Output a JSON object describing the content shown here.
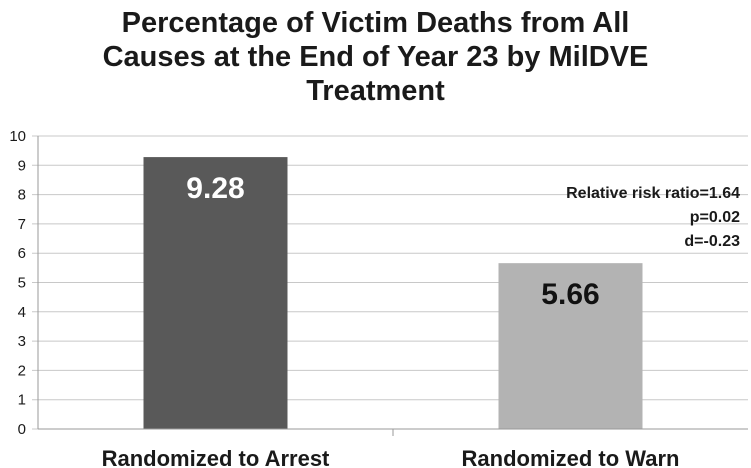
{
  "chart_data": {
    "type": "bar",
    "title_lines": [
      "Percentage of Victim Deaths from All",
      "Causes at the End of Year 23 by MilDVE",
      "Treatment"
    ],
    "categories": [
      "Randomized to Arrest",
      "Randomized to Warn"
    ],
    "values": [
      9.28,
      5.66
    ],
    "data_labels": [
      "9.28",
      "5.66"
    ],
    "bar_colors": [
      "#595959",
      "#b3b3b3"
    ],
    "data_label_colors": [
      "#ffffff",
      "#111111"
    ],
    "ylim": [
      0,
      10
    ],
    "yticks": [
      "0",
      "1",
      "2",
      "3",
      "4",
      "5",
      "6",
      "7",
      "8",
      "9",
      "10"
    ],
    "grid": true,
    "grid_color": "#c8c8c8",
    "legend": "none",
    "annotation_lines": [
      "Relative risk ratio=1.64",
      "p=0.02",
      "d=-0.23"
    ]
  }
}
